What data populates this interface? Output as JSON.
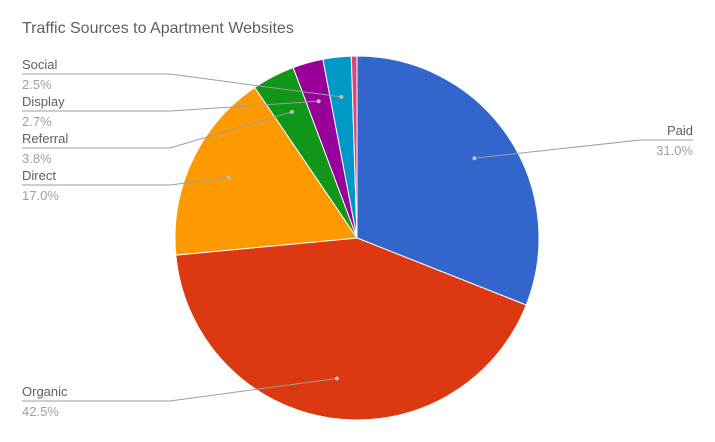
{
  "chart_data": {
    "type": "pie",
    "title": "Traffic Sources to Apartment Websites",
    "slices": [
      {
        "label": "Paid",
        "value": 31.0,
        "value_text": "31.0%",
        "color": "#3366cc"
      },
      {
        "label": "Organic",
        "value": 42.5,
        "value_text": "42.5%",
        "color": "#dc3912"
      },
      {
        "label": "Direct",
        "value": 17.0,
        "value_text": "17.0%",
        "color": "#ff9900"
      },
      {
        "label": "Referral",
        "value": 3.8,
        "value_text": "3.8%",
        "color": "#109618"
      },
      {
        "label": "Display",
        "value": 2.7,
        "value_text": "2.7%",
        "color": "#990099"
      },
      {
        "label": "Social",
        "value": 2.5,
        "value_text": "2.5%",
        "color": "#0099c6"
      },
      {
        "label": "",
        "value": 0.5,
        "value_text": "",
        "color": "#dd4477"
      }
    ],
    "legend": "labels with leader lines"
  }
}
